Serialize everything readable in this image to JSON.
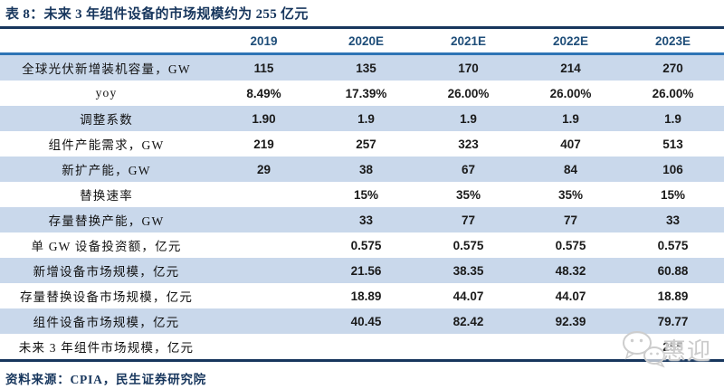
{
  "page": {
    "title": "表 8：未来 3 年组件设备的市场规模约为 255 亿元",
    "source": "资料来源：CPIA，民生证券研究院"
  },
  "watermark": {
    "icon": "wechat-logo",
    "text": "惠迎"
  },
  "colors": {
    "title_navy": "#17365D",
    "header_text_blue": "#1F4E79",
    "header_rule_blue": "#2E74B5",
    "row_alt_blue": "#C9D8EB",
    "rule_navy": "#17365D",
    "value_text": "#1A1A1A",
    "watermark_gray": "#CBCBCB"
  },
  "chart_data": {
    "type": "table",
    "title": "未来 3 年组件设备的市场规模约为 255 亿元",
    "columns": [
      "2019",
      "2020E",
      "2021E",
      "2022E",
      "2023E"
    ],
    "rows": [
      {
        "label": "全球光伏新增装机容量，GW",
        "values": [
          "115",
          "135",
          "170",
          "214",
          "270"
        ]
      },
      {
        "label": "yoy",
        "values": [
          "8.49%",
          "17.39%",
          "26.00%",
          "26.00%",
          "26.00%"
        ]
      },
      {
        "label": "调整系数",
        "values": [
          "1.90",
          "1.9",
          "1.9",
          "1.9",
          "1.9"
        ]
      },
      {
        "label": "组件产能需求，GW",
        "values": [
          "219",
          "257",
          "323",
          "407",
          "513"
        ]
      },
      {
        "label": "新扩产能，GW",
        "values": [
          "29",
          "38",
          "67",
          "84",
          "106"
        ]
      },
      {
        "label": "替换速率",
        "values": [
          "",
          "15%",
          "35%",
          "35%",
          "15%"
        ]
      },
      {
        "label": "存量替换产能，GW",
        "values": [
          "",
          "33",
          "77",
          "77",
          "33"
        ]
      },
      {
        "label": "单 GW 设备投资额，亿元",
        "values": [
          "",
          "0.575",
          "0.575",
          "0.575",
          "0.575"
        ]
      },
      {
        "label": "新增设备市场规模，亿元",
        "values": [
          "",
          "21.56",
          "38.35",
          "48.32",
          "60.88"
        ]
      },
      {
        "label": "存量替换设备市场规模，亿元",
        "values": [
          "",
          "18.89",
          "44.07",
          "44.07",
          "18.89"
        ]
      },
      {
        "label": "组件设备市场规模，亿元",
        "values": [
          "",
          "40.45",
          "82.42",
          "92.39",
          "79.77"
        ]
      },
      {
        "label": "未来 3 年组件市场规模，亿元",
        "values": [
          "",
          "",
          "",
          "",
          "255"
        ]
      }
    ]
  }
}
